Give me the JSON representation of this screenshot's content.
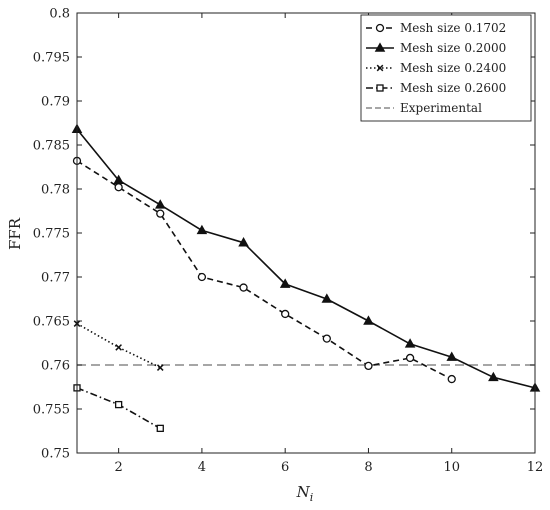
{
  "chart_data": {
    "type": "line",
    "title": "",
    "xlabel": "N",
    "xlabel_subscript": "i",
    "ylabel": "FFR",
    "xlim": [
      1,
      12
    ],
    "ylim": [
      0.75,
      0.8
    ],
    "xticks": [
      2,
      4,
      6,
      8,
      10,
      12
    ],
    "yticks": [
      0.75,
      0.755,
      0.76,
      0.765,
      0.77,
      0.775,
      0.78,
      0.785,
      0.79,
      0.795,
      0.8
    ],
    "ytick_labels": [
      "0.75",
      "0.755",
      "0.76",
      "0.765",
      "0.77",
      "0.775",
      "0.78",
      "0.785",
      "0.79",
      "0.795",
      "0.8"
    ],
    "grid": false,
    "legend_position": "top-right",
    "series": [
      {
        "name": "Mesh size 0.1702",
        "line_style": "dashed",
        "marker": "circle",
        "x": [
          1,
          2,
          3,
          4,
          5,
          6,
          7,
          8,
          9,
          10
        ],
        "y": [
          0.7832,
          0.7802,
          0.7772,
          0.77,
          0.7688,
          0.7658,
          0.763,
          0.7599,
          0.7608,
          0.7584
        ]
      },
      {
        "name": "Mesh size 0.2000",
        "line_style": "solid",
        "marker": "triangle",
        "x": [
          1,
          2,
          3,
          4,
          5,
          6,
          7,
          8,
          9,
          10,
          11,
          12
        ],
        "y": [
          0.7868,
          0.781,
          0.7782,
          0.7753,
          0.7739,
          0.7692,
          0.7675,
          0.765,
          0.7624,
          0.7609,
          0.7586,
          0.7574
        ]
      },
      {
        "name": "Mesh size 0.2400",
        "line_style": "dotted",
        "marker": "x",
        "x": [
          1,
          2,
          3
        ],
        "y": [
          0.7647,
          0.762,
          0.7597
        ]
      },
      {
        "name": "Mesh size 0.2600",
        "line_style": "dashdot",
        "marker": "square",
        "x": [
          1,
          2,
          3
        ],
        "y": [
          0.7574,
          0.7555,
          0.7528
        ]
      }
    ],
    "reference_lines": [
      {
        "name": "Experimental",
        "y": 0.76,
        "line_style": "dashed",
        "color": "#888888"
      }
    ],
    "colors": {
      "series": "#111111",
      "reference": "#888888"
    }
  }
}
